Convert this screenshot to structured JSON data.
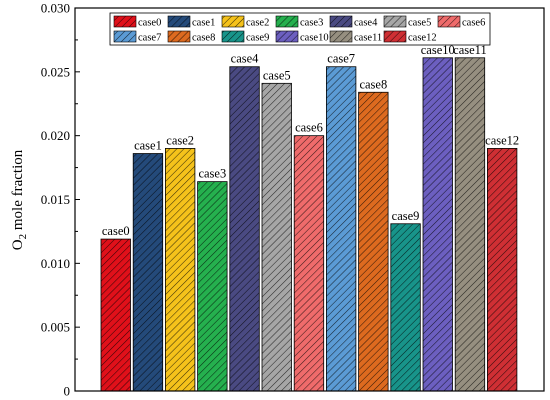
{
  "chart_data": {
    "type": "bar",
    "title": "",
    "xlabel": "",
    "ylabel": "O2 mole fraction",
    "ylabel_main": "O",
    "ylabel_sub": "2",
    "ylabel_rest": " mole fraction",
    "ylim": [
      0,
      0.03
    ],
    "yticks": [
      "0",
      "0.005",
      "0.010",
      "0.015",
      "0.020",
      "0.025",
      "0.030"
    ],
    "grid": false,
    "legend_position": "top",
    "categories": [
      "case0",
      "case1",
      "case2",
      "case3",
      "case4",
      "case5",
      "case6",
      "case7",
      "case8",
      "case9",
      "case10",
      "case11",
      "case12"
    ],
    "values": [
      0.0119,
      0.0186,
      0.019,
      0.0164,
      0.0254,
      0.0241,
      0.02,
      0.0254,
      0.0234,
      0.0131,
      0.0261,
      0.0261,
      0.019
    ],
    "colors": [
      "#e0101a",
      "#244a7a",
      "#f5c21b",
      "#25b04e",
      "#4a4a82",
      "#a6a6a6",
      "#ef6b6b",
      "#5b9bd5",
      "#dd6a1f",
      "#18948a",
      "#6c5fc0",
      "#968f80",
      "#cf2f34"
    ]
  }
}
